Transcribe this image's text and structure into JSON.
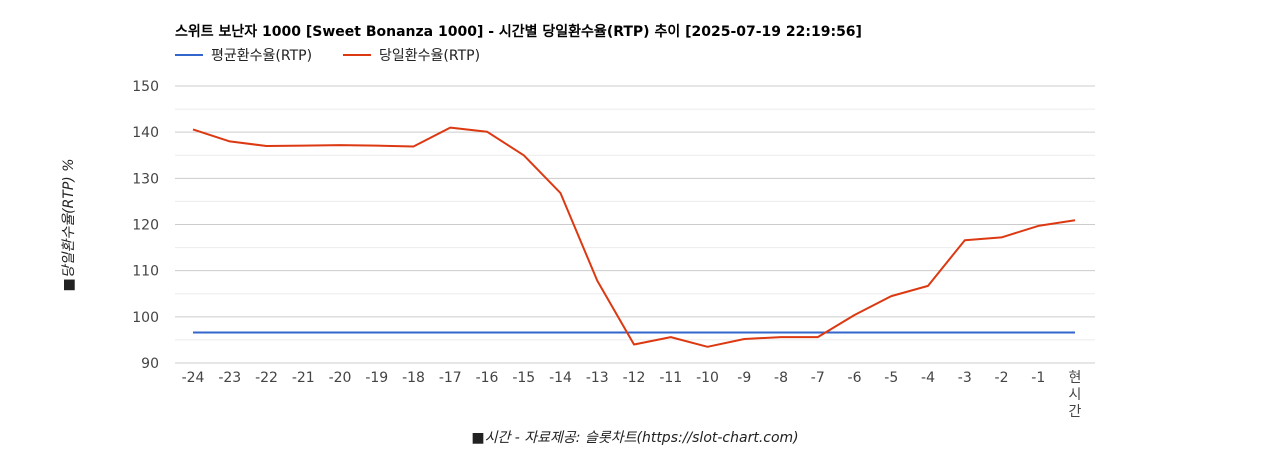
{
  "chart_data": {
    "type": "line",
    "title": "스위트 보난자 1000 [Sweet Bonanza 1000] - 시간별 당일환수율(RTP) 추이 [2025-07-19 22:19:56]",
    "xlabel": "■시간 - 자료제공: 슬롯차트(https://slot-chart.com)",
    "ylabel": "■당일환수율(RTP) %",
    "categories": [
      "-24",
      "-23",
      "-22",
      "-21",
      "-20",
      "-19",
      "-18",
      "-17",
      "-16",
      "-15",
      "-14",
      "-13",
      "-12",
      "-11",
      "-10",
      "-9",
      "-8",
      "-7",
      "-6",
      "-5",
      "-4",
      "-3",
      "-2",
      "-1",
      "현시간"
    ],
    "category_label_lines": {
      "현시간": [
        "현",
        "시",
        "간"
      ]
    },
    "yticks": [
      90,
      100,
      110,
      120,
      130,
      140,
      150
    ],
    "ylim": [
      90,
      150
    ],
    "grid": true,
    "legend_position": "top-left",
    "series": [
      {
        "name": "평균환수율(RTP)",
        "color": "#3366cc",
        "values": [
          96.6,
          96.6,
          96.6,
          96.6,
          96.6,
          96.6,
          96.6,
          96.6,
          96.6,
          96.6,
          96.6,
          96.6,
          96.6,
          96.6,
          96.6,
          96.6,
          96.6,
          96.6,
          96.6,
          96.6,
          96.6,
          96.6,
          96.6,
          96.6,
          96.6
        ]
      },
      {
        "name": "당일환수율(RTP)",
        "color": "#dc3912",
        "values": [
          140.6,
          138.0,
          137.0,
          137.1,
          137.2,
          137.1,
          136.9,
          141.0,
          140.1,
          135.0,
          126.8,
          107.8,
          94.0,
          95.6,
          93.5,
          95.2,
          95.6,
          95.6,
          100.4,
          104.5,
          106.7,
          116.6,
          117.2,
          119.7,
          120.9
        ]
      }
    ]
  }
}
